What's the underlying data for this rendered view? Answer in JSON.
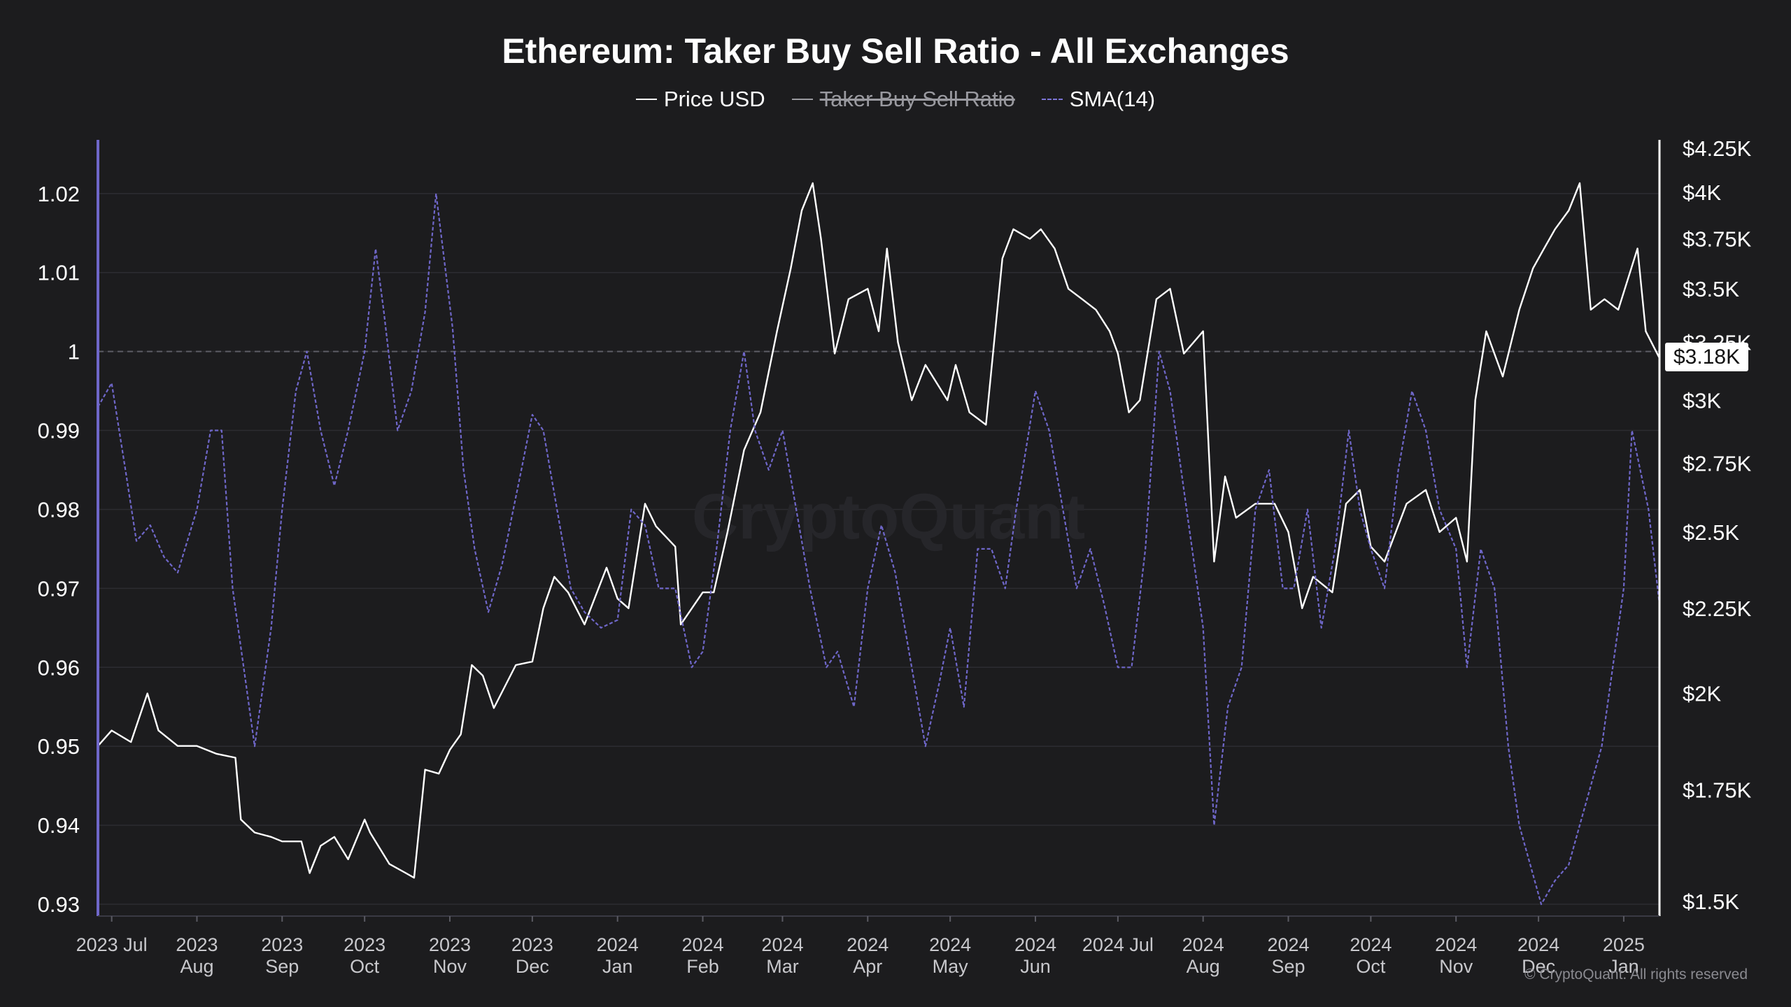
{
  "title": "Ethereum: Taker Buy Sell Ratio - All Exchanges",
  "legend": [
    {
      "label": "Price USD",
      "style": "solid",
      "color": "#ffffff",
      "struck": false
    },
    {
      "label": "Taker Buy Sell Ratio",
      "style": "solid",
      "color": "#9a9aa0",
      "struck": true
    },
    {
      "label": "SMA(14)",
      "style": "dashed",
      "color": "#7b74d6",
      "struck": false
    }
  ],
  "watermark": "CryptoQuant",
  "copyright": "© CryptoQuant. All rights reserved",
  "current_price_label": "$3.18K",
  "colors": {
    "background": "#1c1c1e",
    "price_line": "#ffffff",
    "sma_line": "#6f67c9",
    "left_axis": "#6f67c9",
    "right_axis": "#ffffff",
    "grid": "#2c2c31"
  },
  "chart_data": {
    "type": "line",
    "title": "Ethereum: Taker Buy Sell Ratio - All Exchanges",
    "xlabel": "",
    "ylabel_left": "",
    "ylabel_right": "",
    "x_ticks": [
      {
        "line1": "2023 Jul",
        "line2": ""
      },
      {
        "line1": "2023",
        "line2": "Aug"
      },
      {
        "line1": "2023",
        "line2": "Sep"
      },
      {
        "line1": "2023",
        "line2": "Oct"
      },
      {
        "line1": "2023",
        "line2": "Nov"
      },
      {
        "line1": "2023",
        "line2": "Dec"
      },
      {
        "line1": "2024",
        "line2": "Jan"
      },
      {
        "line1": "2024",
        "line2": "Feb"
      },
      {
        "line1": "2024",
        "line2": "Mar"
      },
      {
        "line1": "2024",
        "line2": "Apr"
      },
      {
        "line1": "2024",
        "line2": "May"
      },
      {
        "line1": "2024",
        "line2": "Jun"
      },
      {
        "line1": "2024 Jul",
        "line2": ""
      },
      {
        "line1": "2024",
        "line2": "Aug"
      },
      {
        "line1": "2024",
        "line2": "Sep"
      },
      {
        "line1": "2024",
        "line2": "Oct"
      },
      {
        "line1": "2024",
        "line2": "Nov"
      },
      {
        "line1": "2024",
        "line2": "Dec"
      },
      {
        "line1": "2025",
        "line2": "Jan"
      }
    ],
    "x_tick_dates": [
      "2023-07-01",
      "2023-08-01",
      "2023-09-01",
      "2023-10-01",
      "2023-11-01",
      "2023-12-01",
      "2024-01-01",
      "2024-02-01",
      "2024-03-01",
      "2024-04-01",
      "2024-05-01",
      "2024-06-01",
      "2024-07-01",
      "2024-08-01",
      "2024-09-01",
      "2024-10-01",
      "2024-11-01",
      "2024-12-01",
      "2025-01-01"
    ],
    "x_range": [
      "2023-06-26",
      "2025-01-14"
    ],
    "left_axis": {
      "ticks": [
        0.93,
        0.94,
        0.95,
        0.96,
        0.97,
        0.98,
        0.99,
        1,
        1.01,
        1.02
      ],
      "tick_labels": [
        "0.93",
        "0.94",
        "0.95",
        "0.96",
        "0.97",
        "0.98",
        "0.99",
        "1",
        "1.01",
        "1.02"
      ],
      "ylim": [
        0.9285,
        1.0268
      ],
      "reference_line": 1
    },
    "right_axis": {
      "scale": "log",
      "ticks": [
        1500,
        1750,
        2000,
        2250,
        2500,
        2750,
        3000,
        3250,
        3500,
        3750,
        4000,
        4250
      ],
      "tick_labels": [
        "$1.5K",
        "$1.75K",
        "$2K",
        "$2.25K",
        "$2.5K",
        "$2.75K",
        "$3K",
        "$3.25K",
        "$3.5K",
        "$3.75K",
        "$4K",
        "$4.25K"
      ],
      "ylim": [
        1470,
        4300
      ]
    },
    "series": [
      {
        "name": "Price USD",
        "axis": "right",
        "style": "solid",
        "points": [
          [
            "2023-06-26",
            1860
          ],
          [
            "2023-07-01",
            1900
          ],
          [
            "2023-07-08",
            1870
          ],
          [
            "2023-07-14",
            2000
          ],
          [
            "2023-07-18",
            1900
          ],
          [
            "2023-07-25",
            1860
          ],
          [
            "2023-08-01",
            1860
          ],
          [
            "2023-08-08",
            1840
          ],
          [
            "2023-08-15",
            1830
          ],
          [
            "2023-08-17",
            1680
          ],
          [
            "2023-08-22",
            1650
          ],
          [
            "2023-08-28",
            1640
          ],
          [
            "2023-09-01",
            1630
          ],
          [
            "2023-09-08",
            1630
          ],
          [
            "2023-09-11",
            1560
          ],
          [
            "2023-09-15",
            1620
          ],
          [
            "2023-09-20",
            1640
          ],
          [
            "2023-09-25",
            1590
          ],
          [
            "2023-10-01",
            1680
          ],
          [
            "2023-10-03",
            1650
          ],
          [
            "2023-10-10",
            1580
          ],
          [
            "2023-10-16",
            1560
          ],
          [
            "2023-10-19",
            1550
          ],
          [
            "2023-10-23",
            1800
          ],
          [
            "2023-10-28",
            1790
          ],
          [
            "2023-11-01",
            1850
          ],
          [
            "2023-11-05",
            1890
          ],
          [
            "2023-11-09",
            2080
          ],
          [
            "2023-11-13",
            2050
          ],
          [
            "2023-11-17",
            1960
          ],
          [
            "2023-11-25",
            2080
          ],
          [
            "2023-12-01",
            2090
          ],
          [
            "2023-12-05",
            2250
          ],
          [
            "2023-12-09",
            2350
          ],
          [
            "2023-12-14",
            2300
          ],
          [
            "2023-12-20",
            2200
          ],
          [
            "2023-12-28",
            2380
          ],
          [
            "2024-01-01",
            2280
          ],
          [
            "2024-01-05",
            2250
          ],
          [
            "2024-01-11",
            2600
          ],
          [
            "2024-01-15",
            2520
          ],
          [
            "2024-01-22",
            2450
          ],
          [
            "2024-01-24",
            2200
          ],
          [
            "2024-02-01",
            2300
          ],
          [
            "2024-02-05",
            2300
          ],
          [
            "2024-02-10",
            2500
          ],
          [
            "2024-02-16",
            2800
          ],
          [
            "2024-02-22",
            2950
          ],
          [
            "2024-02-28",
            3300
          ],
          [
            "2024-03-04",
            3600
          ],
          [
            "2024-03-08",
            3900
          ],
          [
            "2024-03-12",
            4050
          ],
          [
            "2024-03-15",
            3750
          ],
          [
            "2024-03-20",
            3200
          ],
          [
            "2024-03-25",
            3450
          ],
          [
            "2024-04-01",
            3500
          ],
          [
            "2024-04-05",
            3300
          ],
          [
            "2024-04-08",
            3700
          ],
          [
            "2024-04-12",
            3250
          ],
          [
            "2024-04-17",
            3000
          ],
          [
            "2024-04-22",
            3150
          ],
          [
            "2024-04-30",
            3000
          ],
          [
            "2024-05-03",
            3150
          ],
          [
            "2024-05-08",
            2950
          ],
          [
            "2024-05-14",
            2900
          ],
          [
            "2024-05-20",
            3650
          ],
          [
            "2024-05-24",
            3800
          ],
          [
            "2024-05-30",
            3750
          ],
          [
            "2024-06-03",
            3800
          ],
          [
            "2024-06-08",
            3700
          ],
          [
            "2024-06-13",
            3500
          ],
          [
            "2024-06-18",
            3450
          ],
          [
            "2024-06-23",
            3400
          ],
          [
            "2024-06-28",
            3300
          ],
          [
            "2024-07-01",
            3200
          ],
          [
            "2024-07-05",
            2950
          ],
          [
            "2024-07-09",
            3000
          ],
          [
            "2024-07-15",
            3450
          ],
          [
            "2024-07-20",
            3500
          ],
          [
            "2024-07-25",
            3200
          ],
          [
            "2024-08-01",
            3300
          ],
          [
            "2024-08-05",
            2400
          ],
          [
            "2024-08-09",
            2700
          ],
          [
            "2024-08-13",
            2550
          ],
          [
            "2024-08-20",
            2600
          ],
          [
            "2024-08-27",
            2600
          ],
          [
            "2024-09-01",
            2500
          ],
          [
            "2024-09-06",
            2250
          ],
          [
            "2024-09-10",
            2350
          ],
          [
            "2024-09-17",
            2300
          ],
          [
            "2024-09-22",
            2600
          ],
          [
            "2024-09-27",
            2650
          ],
          [
            "2024-10-01",
            2450
          ],
          [
            "2024-10-06",
            2400
          ],
          [
            "2024-10-14",
            2600
          ],
          [
            "2024-10-21",
            2650
          ],
          [
            "2024-10-26",
            2500
          ],
          [
            "2024-11-01",
            2550
          ],
          [
            "2024-11-05",
            2400
          ],
          [
            "2024-11-08",
            3000
          ],
          [
            "2024-11-12",
            3300
          ],
          [
            "2024-11-18",
            3100
          ],
          [
            "2024-11-24",
            3400
          ],
          [
            "2024-11-29",
            3600
          ],
          [
            "2024-12-03",
            3700
          ],
          [
            "2024-12-07",
            3800
          ],
          [
            "2024-12-12",
            3900
          ],
          [
            "2024-12-16",
            4050
          ],
          [
            "2024-12-20",
            3400
          ],
          [
            "2024-12-25",
            3450
          ],
          [
            "2024-12-30",
            3400
          ],
          [
            "2025-01-06",
            3700
          ],
          [
            "2025-01-09",
            3300
          ],
          [
            "2025-01-14",
            3180
          ]
        ]
      },
      {
        "name": "SMA(14)",
        "axis": "left",
        "style": "dashed",
        "points": [
          [
            "2023-06-26",
            0.993
          ],
          [
            "2023-07-01",
            0.996
          ],
          [
            "2023-07-06",
            0.985
          ],
          [
            "2023-07-10",
            0.976
          ],
          [
            "2023-07-15",
            0.978
          ],
          [
            "2023-07-20",
            0.974
          ],
          [
            "2023-07-25",
            0.972
          ],
          [
            "2023-08-01",
            0.98
          ],
          [
            "2023-08-06",
            0.99
          ],
          [
            "2023-08-10",
            0.99
          ],
          [
            "2023-08-14",
            0.97
          ],
          [
            "2023-08-18",
            0.96
          ],
          [
            "2023-08-22",
            0.95
          ],
          [
            "2023-08-28",
            0.965
          ],
          [
            "2023-09-01",
            0.98
          ],
          [
            "2023-09-06",
            0.995
          ],
          [
            "2023-09-10",
            1.0
          ],
          [
            "2023-09-15",
            0.99
          ],
          [
            "2023-09-20",
            0.983
          ],
          [
            "2023-09-25",
            0.99
          ],
          [
            "2023-10-01",
            1.0
          ],
          [
            "2023-10-05",
            1.013
          ],
          [
            "2023-10-08",
            1.005
          ],
          [
            "2023-10-13",
            0.99
          ],
          [
            "2023-10-18",
            0.995
          ],
          [
            "2023-10-23",
            1.005
          ],
          [
            "2023-10-27",
            1.02
          ],
          [
            "2023-11-02",
            1.003
          ],
          [
            "2023-11-06",
            0.985
          ],
          [
            "2023-11-10",
            0.975
          ],
          [
            "2023-11-15",
            0.967
          ],
          [
            "2023-11-20",
            0.973
          ],
          [
            "2023-11-27",
            0.985
          ],
          [
            "2023-12-01",
            0.992
          ],
          [
            "2023-12-05",
            0.99
          ],
          [
            "2023-12-10",
            0.98
          ],
          [
            "2023-12-15",
            0.97
          ],
          [
            "2023-12-20",
            0.967
          ],
          [
            "2023-12-26",
            0.965
          ],
          [
            "2024-01-01",
            0.966
          ],
          [
            "2024-01-06",
            0.98
          ],
          [
            "2024-01-11",
            0.978
          ],
          [
            "2024-01-16",
            0.97
          ],
          [
            "2024-01-22",
            0.97
          ],
          [
            "2024-01-28",
            0.96
          ],
          [
            "2024-02-01",
            0.962
          ],
          [
            "2024-02-06",
            0.975
          ],
          [
            "2024-02-11",
            0.99
          ],
          [
            "2024-02-16",
            1.0
          ],
          [
            "2024-02-20",
            0.99
          ],
          [
            "2024-02-25",
            0.985
          ],
          [
            "2024-03-01",
            0.99
          ],
          [
            "2024-03-05",
            0.982
          ],
          [
            "2024-03-11",
            0.97
          ],
          [
            "2024-03-17",
            0.96
          ],
          [
            "2024-03-21",
            0.962
          ],
          [
            "2024-03-27",
            0.955
          ],
          [
            "2024-04-01",
            0.97
          ],
          [
            "2024-04-06",
            0.978
          ],
          [
            "2024-04-11",
            0.972
          ],
          [
            "2024-04-17",
            0.96
          ],
          [
            "2024-04-22",
            0.95
          ],
          [
            "2024-04-27",
            0.958
          ],
          [
            "2024-05-01",
            0.965
          ],
          [
            "2024-05-06",
            0.955
          ],
          [
            "2024-05-11",
            0.975
          ],
          [
            "2024-05-16",
            0.975
          ],
          [
            "2024-05-21",
            0.97
          ],
          [
            "2024-05-25",
            0.98
          ],
          [
            "2024-06-01",
            0.995
          ],
          [
            "2024-06-06",
            0.99
          ],
          [
            "2024-06-11",
            0.98
          ],
          [
            "2024-06-16",
            0.97
          ],
          [
            "2024-06-21",
            0.975
          ],
          [
            "2024-06-26",
            0.968
          ],
          [
            "2024-07-01",
            0.96
          ],
          [
            "2024-07-06",
            0.96
          ],
          [
            "2024-07-11",
            0.975
          ],
          [
            "2024-07-16",
            1.0
          ],
          [
            "2024-07-20",
            0.995
          ],
          [
            "2024-07-26",
            0.98
          ],
          [
            "2024-08-01",
            0.965
          ],
          [
            "2024-08-05",
            0.94
          ],
          [
            "2024-08-10",
            0.955
          ],
          [
            "2024-08-15",
            0.96
          ],
          [
            "2024-08-20",
            0.98
          ],
          [
            "2024-08-25",
            0.985
          ],
          [
            "2024-08-30",
            0.97
          ],
          [
            "2024-09-03",
            0.97
          ],
          [
            "2024-09-08",
            0.98
          ],
          [
            "2024-09-13",
            0.965
          ],
          [
            "2024-09-18",
            0.975
          ],
          [
            "2024-09-23",
            0.99
          ],
          [
            "2024-09-27",
            0.98
          ],
          [
            "2024-10-01",
            0.975
          ],
          [
            "2024-10-06",
            0.97
          ],
          [
            "2024-10-11",
            0.985
          ],
          [
            "2024-10-16",
            0.995
          ],
          [
            "2024-10-21",
            0.99
          ],
          [
            "2024-10-26",
            0.98
          ],
          [
            "2024-11-01",
            0.975
          ],
          [
            "2024-11-05",
            0.96
          ],
          [
            "2024-11-10",
            0.975
          ],
          [
            "2024-11-15",
            0.97
          ],
          [
            "2024-11-20",
            0.95
          ],
          [
            "2024-11-24",
            0.94
          ],
          [
            "2024-11-28",
            0.935
          ],
          [
            "2024-12-02",
            0.93
          ],
          [
            "2024-12-07",
            0.933
          ],
          [
            "2024-12-12",
            0.935
          ],
          [
            "2024-12-16",
            0.94
          ],
          [
            "2024-12-20",
            0.945
          ],
          [
            "2024-12-24",
            0.95
          ],
          [
            "2024-12-28",
            0.96
          ],
          [
            "2025-01-01",
            0.97
          ],
          [
            "2025-01-04",
            0.99
          ],
          [
            "2025-01-07",
            0.985
          ],
          [
            "2025-01-10",
            0.98
          ],
          [
            "2025-01-14",
            0.968
          ]
        ]
      }
    ],
    "grid": true,
    "legend_position": "top-center"
  }
}
